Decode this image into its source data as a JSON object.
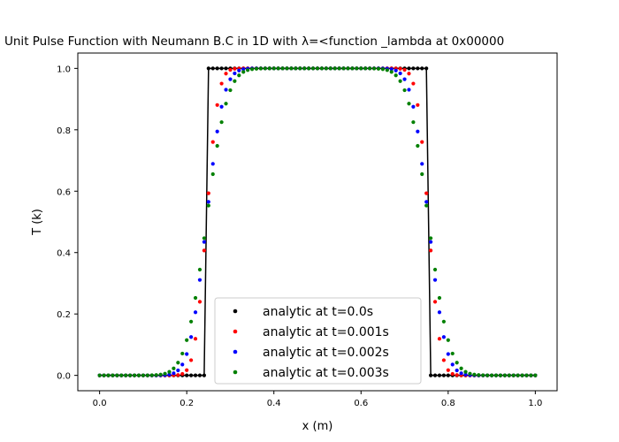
{
  "chart_data": {
    "type": "scatter",
    "title": "Unit Pulse Function with Neumann B.C in 1D with λ=<function _lambda at 0x00000",
    "xlabel": "x (m)",
    "ylabel": "T (k)",
    "xlim": [
      -0.05,
      1.05
    ],
    "ylim": [
      -0.05,
      1.05
    ],
    "xticks": [
      "0.0",
      "0.2",
      "0.4",
      "0.6",
      "0.8",
      "1.0"
    ],
    "yticks": [
      "0.0",
      "0.2",
      "0.4",
      "0.6",
      "0.8",
      "1.0"
    ],
    "grid": false,
    "legend_position": "lower center",
    "n_points": 101,
    "x_range": [
      0.0,
      1.0
    ],
    "pulse_edges": [
      0.245,
      0.755
    ],
    "series": [
      {
        "name": "analytic at t=0.0s",
        "color": "#000000",
        "t": 0.0,
        "width": 0.0,
        "connect_line": true
      },
      {
        "name": "analytic at t=0.001s",
        "color": "#ff0000",
        "t": 0.001,
        "width": 0.03
      },
      {
        "name": "analytic at t=0.002s",
        "color": "#0000ff",
        "t": 0.002,
        "width": 0.043
      },
      {
        "name": "analytic at t=0.003s",
        "color": "#008000",
        "t": 0.003,
        "width": 0.053
      }
    ]
  }
}
